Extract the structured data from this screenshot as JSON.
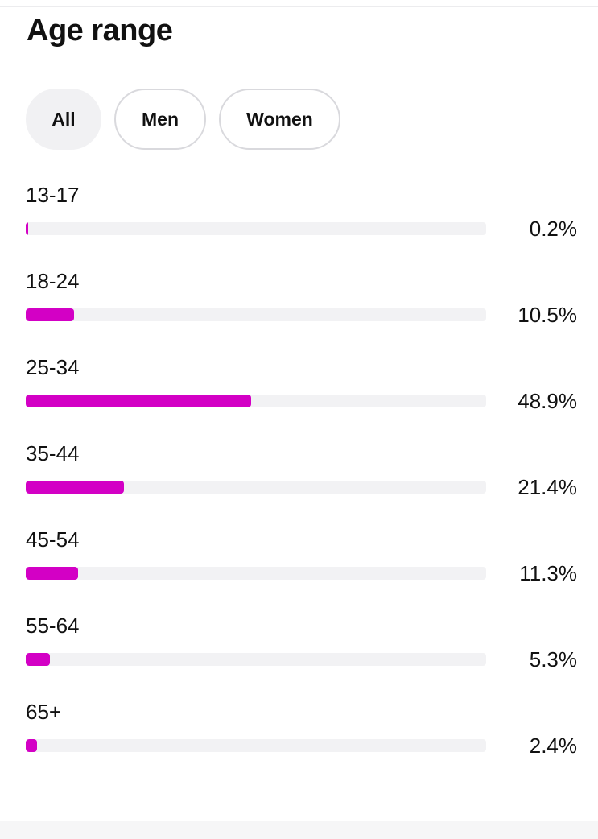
{
  "title": "Age range",
  "filters": [
    {
      "label": "All",
      "selected": true
    },
    {
      "label": "Men",
      "selected": false
    },
    {
      "label": "Women",
      "selected": false
    }
  ],
  "accent_color": "#d300c5",
  "track_color": "#f2f2f4",
  "age_groups": [
    {
      "label": "13-17",
      "value_text": "0.2%",
      "value": 0.2
    },
    {
      "label": "18-24",
      "value_text": "10.5%",
      "value": 10.5
    },
    {
      "label": "25-34",
      "value_text": "48.9%",
      "value": 48.9
    },
    {
      "label": "35-44",
      "value_text": "21.4%",
      "value": 21.4
    },
    {
      "label": "45-54",
      "value_text": "11.3%",
      "value": 11.3
    },
    {
      "label": "55-64",
      "value_text": "5.3%",
      "value": 5.3
    },
    {
      "label": "65+",
      "value_text": "2.4%",
      "value": 2.4
    }
  ]
}
